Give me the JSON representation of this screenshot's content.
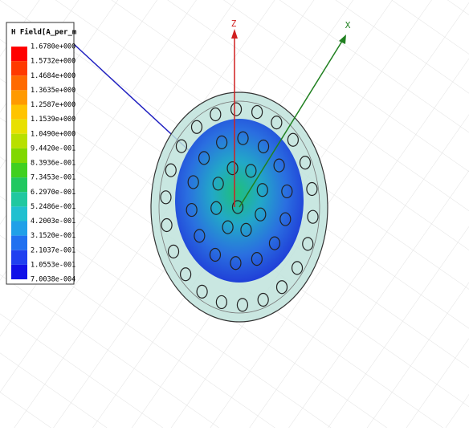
{
  "legend": {
    "title": "H Field[A_per_m",
    "labels": [
      "1.6780e+000",
      "1.5732e+000",
      "1.4684e+000",
      "1.3635e+000",
      "1.2587e+000",
      "1.1539e+000",
      "1.0490e+000",
      "9.4420e-001",
      "8.3936e-001",
      "7.3453e-001",
      "6.2970e-001",
      "5.2486e-001",
      "4.2003e-001",
      "3.1520e-001",
      "2.1037e-001",
      "1.0553e-001",
      "7.0038e-004"
    ]
  },
  "axes": {
    "z": "Z",
    "x": "X"
  }
}
